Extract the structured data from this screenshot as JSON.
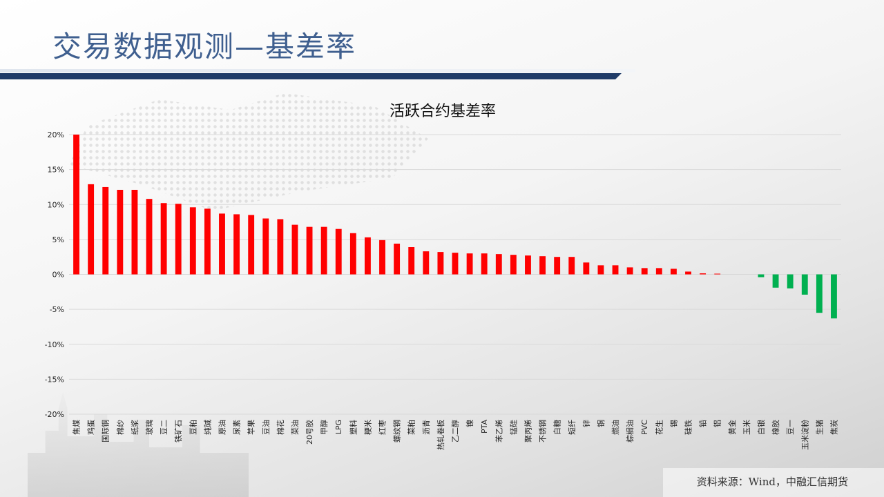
{
  "header": {
    "title": "交易数据观测—基差率"
  },
  "source": "资料来源：Wind，中融汇信期货",
  "colors": {
    "positive": "#ff0000",
    "negative": "#00b050",
    "grid": "#d9d9d9",
    "header_bar": "#1f3b68",
    "title_text": "#3f5f8f"
  },
  "chart_data": {
    "type": "bar",
    "title": "活跃合约基差率",
    "xlabel": "",
    "ylabel": "",
    "ylim": [
      -20,
      20
    ],
    "yticks": [
      20,
      15,
      10,
      5,
      0,
      -5,
      -10,
      -15,
      -20
    ],
    "ytick_labels": [
      "20%",
      "15%",
      "10%",
      "5%",
      "0%",
      "-5%",
      "-10%",
      "-15%",
      "-20%"
    ],
    "grid": true,
    "categories": [
      "焦煤",
      "鸡蛋",
      "国际铜",
      "棉纱",
      "纸浆",
      "玻璃",
      "豆二",
      "铁矿石",
      "豆粕",
      "纯碱",
      "原油",
      "尿素",
      "苹果",
      "豆油",
      "棉花",
      "菜油",
      "20号胶",
      "甲醇",
      "LPG",
      "塑料",
      "粳米",
      "红枣",
      "螺纹钢",
      "菜粕",
      "沥青",
      "热轧卷板",
      "乙二醇",
      "镍",
      "PTA",
      "苯乙烯",
      "锰硅",
      "聚丙烯",
      "不锈钢",
      "白糖",
      "短纤",
      "锌",
      "铜",
      "燃油",
      "棕榈油",
      "PVC",
      "花生",
      "锡",
      "硅铁",
      "铅",
      "铝",
      "黄金",
      "玉米",
      "白银",
      "橡胶",
      "豆一",
      "玉米淀粉",
      "生猪",
      "焦炭"
    ],
    "values": [
      20.0,
      12.9,
      12.5,
      12.1,
      12.1,
      10.8,
      10.2,
      10.1,
      9.6,
      9.4,
      8.7,
      8.6,
      8.5,
      8.0,
      7.9,
      7.1,
      6.8,
      6.8,
      6.5,
      5.9,
      5.3,
      4.9,
      4.4,
      3.9,
      3.3,
      3.2,
      3.1,
      3.0,
      3.0,
      2.9,
      2.8,
      2.7,
      2.6,
      2.5,
      2.5,
      1.7,
      1.3,
      1.3,
      1.0,
      0.9,
      0.9,
      0.8,
      0.4,
      0.15,
      0.1,
      0.0,
      0.0,
      -0.4,
      -1.9,
      -2.0,
      -2.9,
      -5.5,
      -6.3
    ]
  }
}
